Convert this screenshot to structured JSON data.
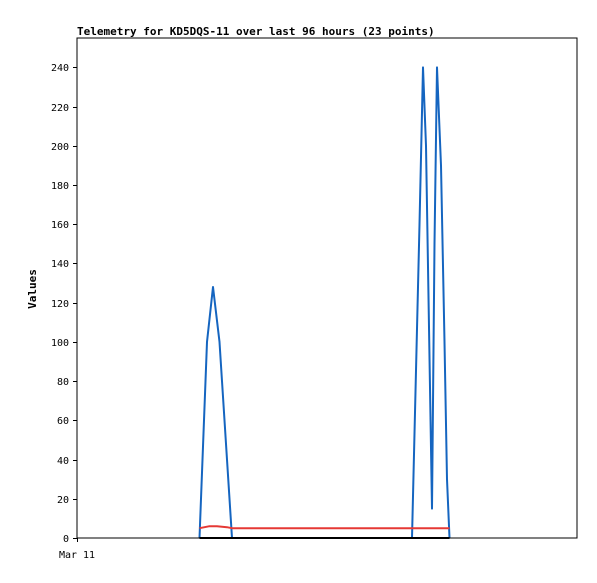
{
  "chart_data": {
    "type": "line",
    "title": "Telemetry for KD5DQS-11 over last 96 hours (23 points)",
    "xlabel": "",
    "ylabel": "Values",
    "x_tick_labels": [
      "Mar 11"
    ],
    "ylim": [
      0,
      255
    ],
    "y_ticks": [
      0,
      20,
      40,
      60,
      80,
      100,
      120,
      140,
      160,
      180,
      200,
      220,
      240
    ],
    "grid": false,
    "legend": "none",
    "colors": {
      "frame": "#000000",
      "background": "#ffffff"
    },
    "series": [
      {
        "color": "#1565c0",
        "points": [
          [
            24.5,
            0
          ],
          [
            26.0,
            100
          ],
          [
            27.2,
            128
          ],
          [
            28.5,
            100
          ],
          [
            31.0,
            0
          ],
          [
            67.0,
            0
          ],
          [
            68.5,
            160
          ],
          [
            69.2,
            240
          ],
          [
            69.8,
            200
          ],
          [
            71.0,
            15
          ],
          [
            71.5,
            150
          ],
          [
            72.0,
            240
          ],
          [
            72.8,
            190
          ],
          [
            73.5,
            100
          ],
          [
            74.0,
            30
          ],
          [
            74.5,
            0
          ]
        ]
      },
      {
        "color": "#e53935",
        "points": [
          [
            24.5,
            5
          ],
          [
            26.5,
            6
          ],
          [
            28.0,
            6
          ],
          [
            30.0,
            5.5
          ],
          [
            31.0,
            5
          ],
          [
            40.0,
            5
          ],
          [
            50.0,
            5
          ],
          [
            60.0,
            5
          ],
          [
            67.0,
            5
          ],
          [
            70.0,
            5
          ],
          [
            74.5,
            5
          ]
        ]
      },
      {
        "color": "#000000",
        "points": [
          [
            24.5,
            0
          ],
          [
            74.5,
            0
          ]
        ]
      }
    ]
  }
}
